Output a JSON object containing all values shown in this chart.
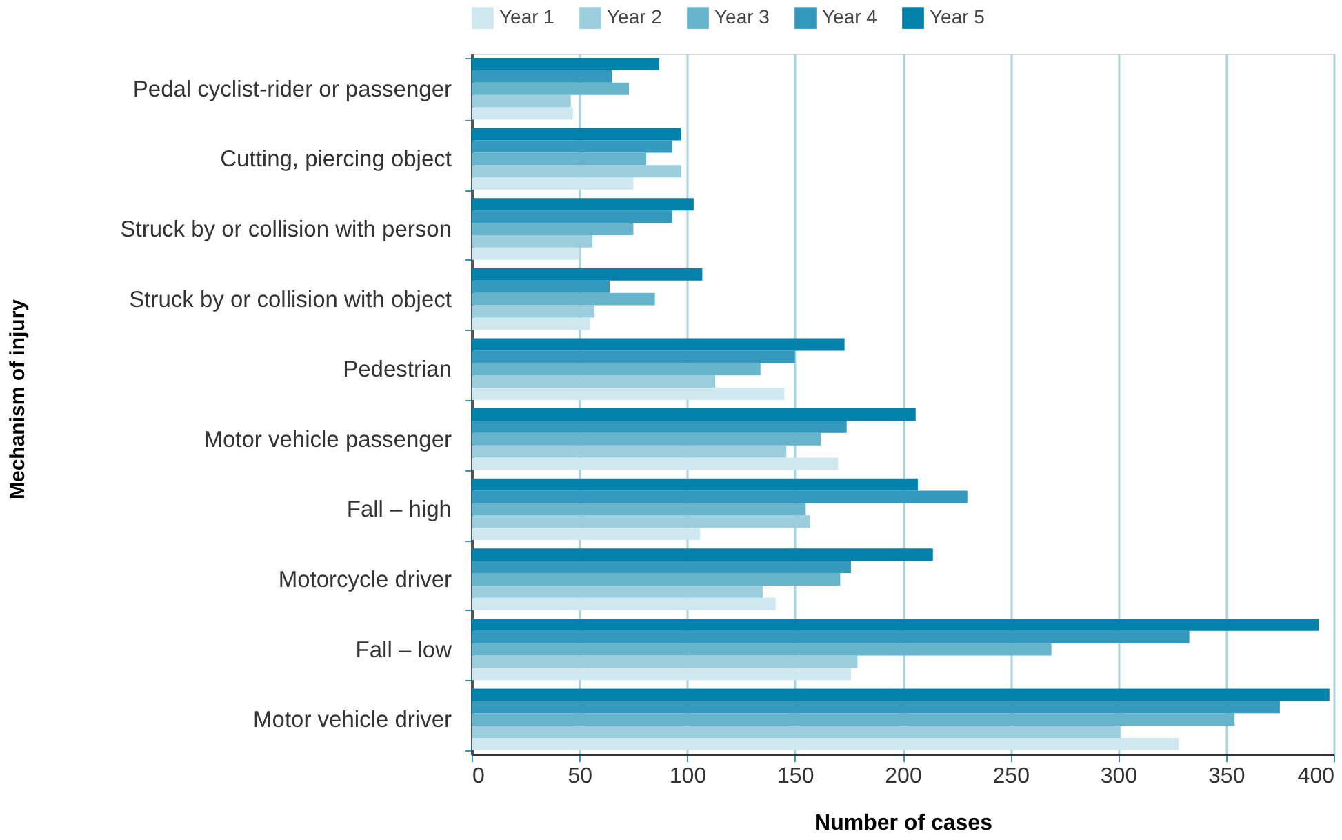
{
  "chart_data": {
    "type": "bar",
    "orientation": "horizontal",
    "xlabel": "Number of cases",
    "ylabel": "Mechanism of injury",
    "categories": [
      "Pedal cyclist-rider or passenger",
      "Cutting, piercing object",
      "Struck by or collision with person",
      "Struck by or collision with object",
      "Pedestrian",
      "Motor vehicle passenger",
      "Fall – high",
      "Motorcycle driver",
      "Fall – low",
      "Motor vehicle driver"
    ],
    "series": [
      {
        "name": "Year 1",
        "color": "#cfe7ee",
        "values": [
          47,
          75,
          50,
          55,
          145,
          170,
          106,
          141,
          176,
          328
        ]
      },
      {
        "name": "Year 2",
        "color": "#9bcddd",
        "values": [
          46,
          97,
          56,
          57,
          113,
          146,
          157,
          135,
          179,
          301
        ]
      },
      {
        "name": "Year 3",
        "color": "#68b3cc",
        "values": [
          73,
          81,
          75,
          85,
          134,
          162,
          155,
          171,
          269,
          354
        ]
      },
      {
        "name": "Year 4",
        "color": "#3598bd",
        "values": [
          65,
          93,
          93,
          64,
          150,
          174,
          230,
          176,
          333,
          375
        ]
      },
      {
        "name": "Year 5",
        "color": "#0381ab",
        "values": [
          87,
          97,
          103,
          107,
          173,
          206,
          207,
          214,
          393,
          398
        ]
      }
    ],
    "xlim": [
      0,
      400
    ],
    "xticks": [
      0,
      50,
      100,
      150,
      200,
      250,
      300,
      350,
      400
    ],
    "grid": "x",
    "legend": "top"
  }
}
